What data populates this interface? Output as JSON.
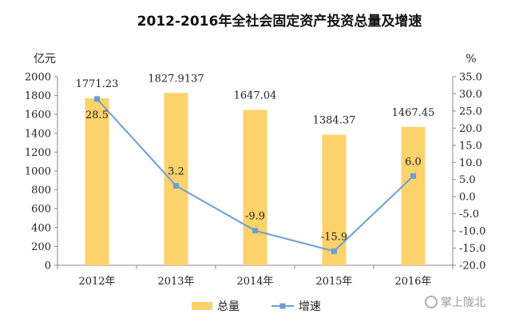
{
  "chart_data": {
    "type": "bar+line",
    "title": "2012-2016年全社会固定资产投资总量及增速",
    "categories": [
      "2012年",
      "2013年",
      "2014年",
      "2015年",
      "2016年"
    ],
    "bar_series": {
      "name": "总量",
      "values": [
        1771.23,
        1827.9137,
        1647.04,
        1384.37,
        1467.45
      ],
      "labels": [
        "1771.23",
        "1827.9137",
        "1647.04",
        "1384.37",
        "1467.45"
      ],
      "color": "#FCD26A"
    },
    "line_series": {
      "name": "增速",
      "values": [
        28.5,
        3.2,
        -9.9,
        -15.9,
        6.0
      ],
      "labels": [
        "28.5",
        "3.2",
        "-9.9",
        "-15.9",
        "6.0"
      ],
      "color": "#6E9ED1"
    },
    "y_left": {
      "unit": "亿元",
      "range": [
        0,
        2000
      ],
      "ticks": [
        "0",
        "200",
        "400",
        "600",
        "800",
        "1000",
        "1200",
        "1400",
        "1600",
        "1800",
        "2000"
      ]
    },
    "y_right": {
      "unit": "%",
      "range": [
        -20,
        35
      ],
      "ticks": [
        "-20.0",
        "-15.0",
        "-10.0",
        "-5.0",
        "0.0",
        "5.0",
        "10.0",
        "15.0",
        "20.0",
        "25.0",
        "30.0",
        "35.0"
      ]
    },
    "legend": {
      "position": "bottom",
      "items": [
        "总量",
        "增速"
      ]
    },
    "grid": false
  },
  "watermark": "掌上陇北"
}
